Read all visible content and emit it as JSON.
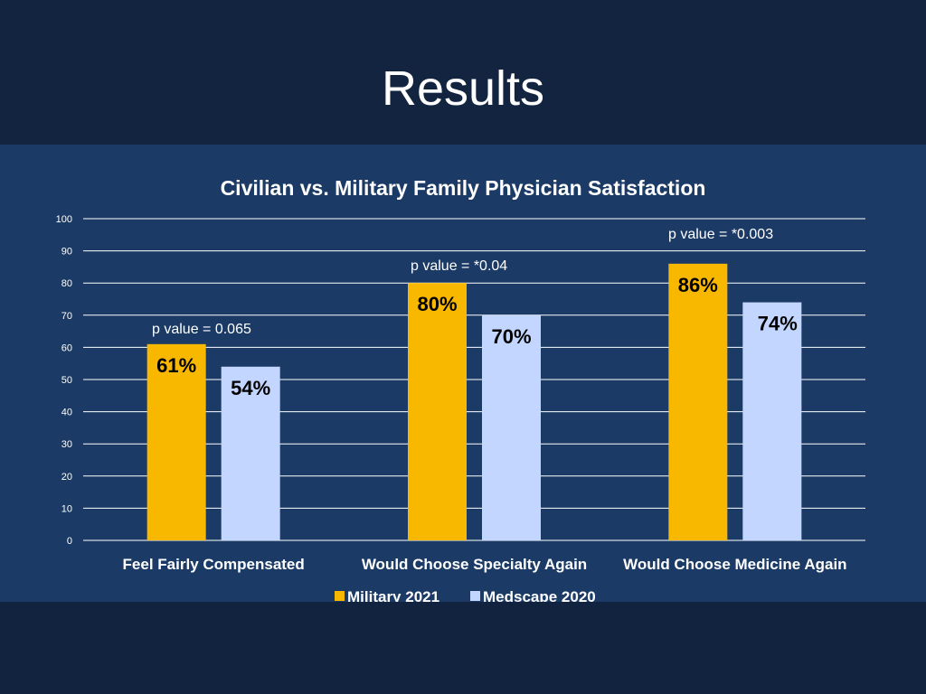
{
  "slide": {
    "title": "Results"
  },
  "colors": {
    "background": "#1b3b66",
    "military": "#f8b800",
    "medscape": "#c2d6ff",
    "text": "#ffffff",
    "data_label": "#000000"
  },
  "chart_data": {
    "type": "bar",
    "title": "Civilian vs. Military Family Physician Satisfaction",
    "categories": [
      "Feel Fairly Compensated",
      "Would Choose Specialty Again",
      "Would Choose Medicine Again"
    ],
    "series": [
      {
        "name": "Military 2021",
        "values": [
          61,
          80,
          86
        ],
        "labels": [
          "61%",
          "80%",
          "86%"
        ],
        "color": "#f8b800"
      },
      {
        "name": "Medscape 2020",
        "values": [
          54,
          70,
          74
        ],
        "labels": [
          "54%",
          "70%",
          "74%"
        ],
        "color": "#c2d6ff"
      }
    ],
    "ylim": [
      0,
      100
    ],
    "yticks": [
      0,
      10,
      20,
      30,
      40,
      50,
      60,
      70,
      80,
      90,
      100
    ],
    "grid": true,
    "legend": {
      "position": "bottom",
      "entries": [
        "Military 2021",
        "Medscape 2020"
      ]
    },
    "annotations": [
      "p value = 0.065",
      "p value = *0.04",
      "p value = *0.003"
    ],
    "xlabel": "",
    "ylabel": ""
  }
}
